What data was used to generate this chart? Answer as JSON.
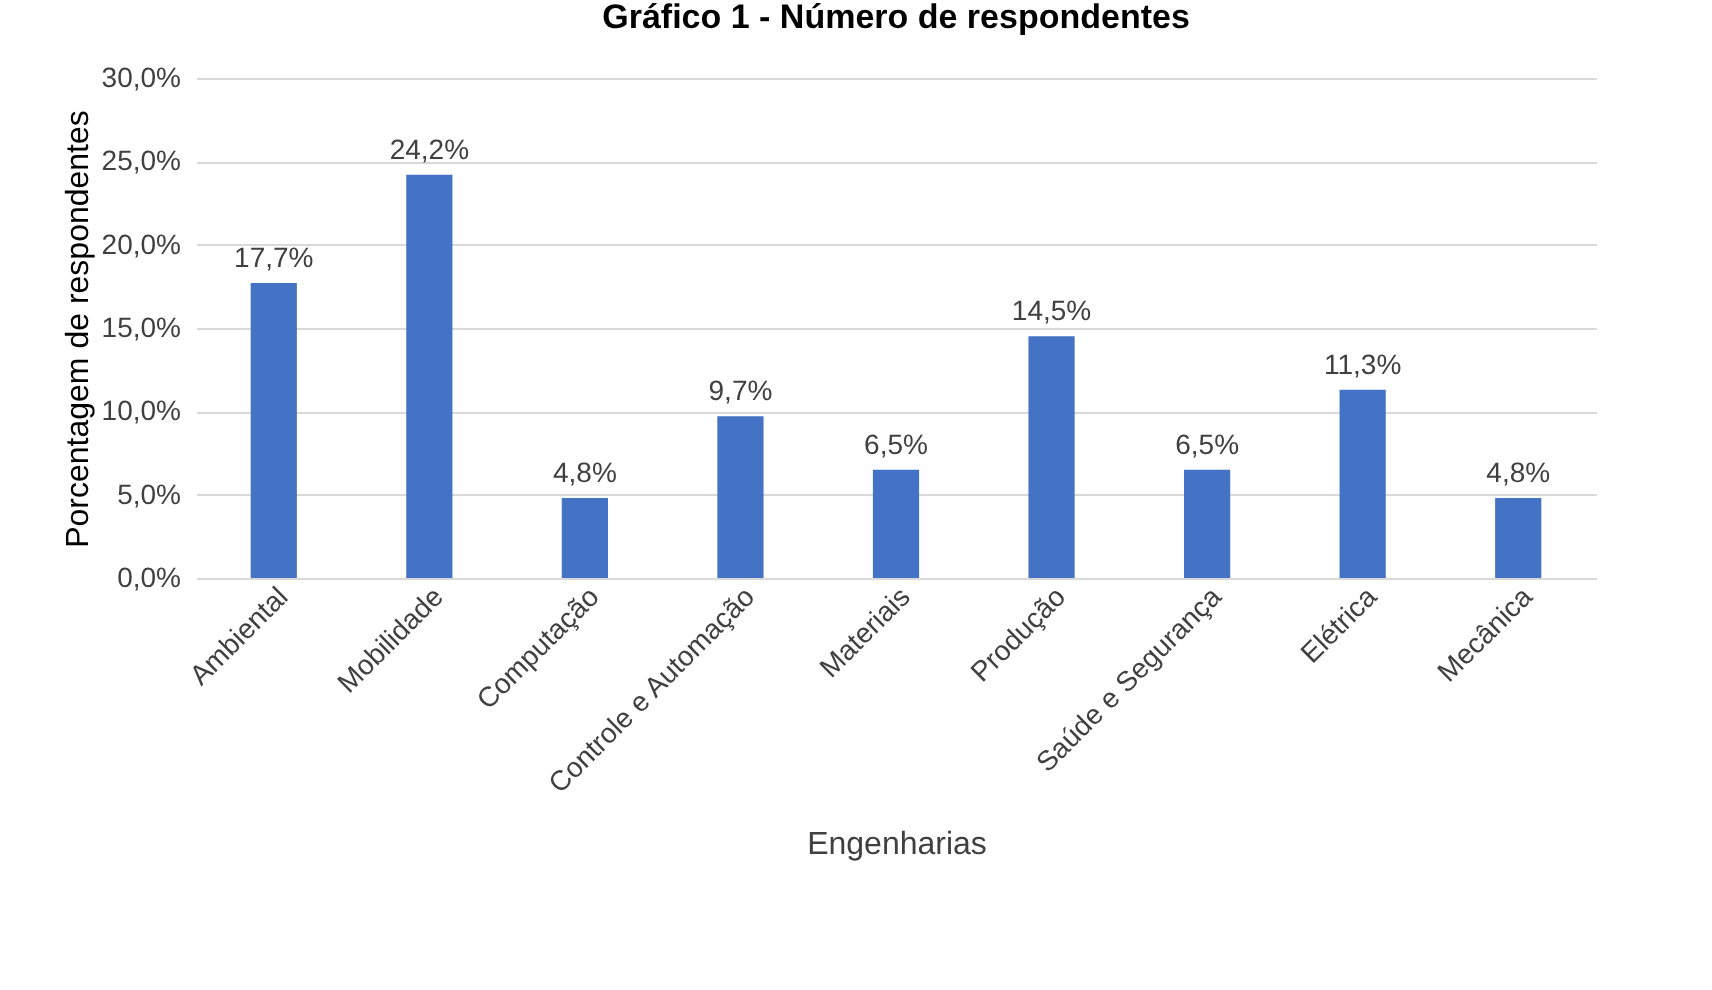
{
  "chart_data": {
    "type": "bar",
    "title": "Gráfico 1 - Número de respondentes",
    "xlabel": "Engenharias",
    "ylabel": "Porcentagem de respondentes",
    "categories": [
      "Ambiental",
      "Mobilidade",
      "Computação",
      "Controle e Automação",
      "Materiais",
      "Produção",
      "Saúde e Segurança",
      "Elétrica",
      "Mecânica"
    ],
    "values": [
      17.7,
      24.2,
      4.8,
      9.7,
      6.5,
      14.5,
      6.5,
      11.3,
      4.8
    ],
    "value_labels": [
      "17,7%",
      "24,2%",
      "4,8%",
      "9,7%",
      "6,5%",
      "14,5%",
      "6,5%",
      "11,3%",
      "4,8%"
    ],
    "color": "#4472c4",
    "ylim": [
      0,
      30
    ],
    "yticks": [
      {
        "value": 0,
        "label": "0,0%"
      },
      {
        "value": 5,
        "label": "5,0%"
      },
      {
        "value": 10,
        "label": "10,0%"
      },
      {
        "value": 15,
        "label": "15,0%"
      },
      {
        "value": 20,
        "label": "20,0%"
      },
      {
        "value": 25,
        "label": "25,0%"
      },
      {
        "value": 30,
        "label": "30,0%"
      }
    ],
    "grid": "y"
  }
}
